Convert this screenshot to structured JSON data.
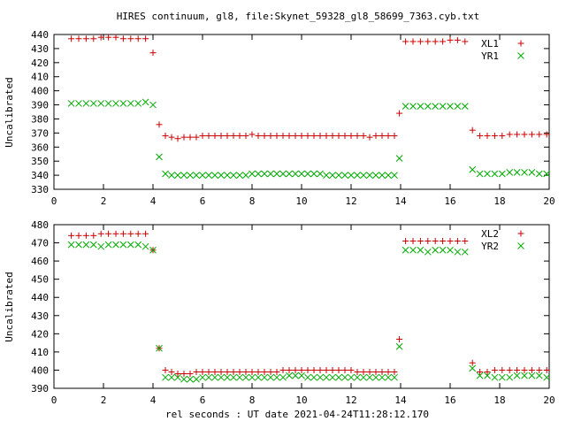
{
  "chart_data": [
    {
      "type": "scatter",
      "title": "HIRES continuum, gl8, file:Skynet_59328_gl8_58699_7363.cyb.txt",
      "xlabel": "",
      "ylabel": "Uncalibrated",
      "xlim": [
        0,
        20
      ],
      "ylim": [
        330,
        440
      ],
      "xticks": [
        "0",
        "2",
        "4",
        "6",
        "8",
        "10",
        "12",
        "14",
        "16",
        "18",
        "20"
      ],
      "yticks": [
        "330",
        "340",
        "350",
        "360",
        "370",
        "380",
        "390",
        "400",
        "410",
        "420",
        "430",
        "440"
      ],
      "legend_position": "top-right",
      "series": [
        {
          "name": "XL1",
          "marker": "plus",
          "color": "#cc0000",
          "x": [
            0.7,
            1.0,
            1.3,
            1.6,
            1.9,
            2.2,
            2.5,
            2.8,
            3.1,
            3.4,
            3.7,
            4.0,
            4.25,
            4.5,
            4.75,
            5.0,
            5.25,
            5.5,
            5.75,
            6.0,
            6.25,
            6.5,
            6.75,
            7.0,
            7.25,
            7.5,
            7.75,
            8.0,
            8.25,
            8.5,
            8.75,
            9.0,
            9.25,
            9.5,
            9.75,
            10.0,
            10.25,
            10.5,
            10.75,
            11.0,
            11.25,
            11.5,
            11.75,
            12.0,
            12.25,
            12.5,
            12.75,
            13.0,
            13.25,
            13.5,
            13.75,
            13.95,
            14.2,
            14.5,
            14.8,
            15.1,
            15.4,
            15.7,
            16.0,
            16.3,
            16.6,
            16.9,
            17.2,
            17.5,
            17.8,
            18.1,
            18.4,
            18.7,
            19.0,
            19.3,
            19.6,
            19.9
          ],
          "y": [
            437,
            437,
            437,
            437,
            438,
            438,
            438,
            437,
            437,
            437,
            437,
            427,
            376,
            368,
            367,
            366,
            367,
            367,
            367,
            368,
            368,
            368,
            368,
            368,
            368,
            368,
            368,
            369,
            368,
            368,
            368,
            368,
            368,
            368,
            368,
            368,
            368,
            368,
            368,
            368,
            368,
            368,
            368,
            368,
            368,
            368,
            367,
            368,
            368,
            368,
            368,
            384,
            435,
            435,
            435,
            435,
            435,
            435,
            436,
            436,
            435,
            372,
            368,
            368,
            368,
            368,
            369,
            369,
            369,
            369,
            369,
            369
          ]
        },
        {
          "name": "YR1",
          "marker": "x",
          "color": "#00aa00",
          "x": [
            0.7,
            1.0,
            1.3,
            1.6,
            1.9,
            2.2,
            2.5,
            2.8,
            3.1,
            3.4,
            3.7,
            4.0,
            4.25,
            4.5,
            4.75,
            5.0,
            5.25,
            5.5,
            5.75,
            6.0,
            6.25,
            6.5,
            6.75,
            7.0,
            7.25,
            7.5,
            7.75,
            8.0,
            8.25,
            8.5,
            8.75,
            9.0,
            9.25,
            9.5,
            9.75,
            10.0,
            10.25,
            10.5,
            10.75,
            11.0,
            11.25,
            11.5,
            11.75,
            12.0,
            12.25,
            12.5,
            12.75,
            13.0,
            13.25,
            13.5,
            13.75,
            13.95,
            14.2,
            14.5,
            14.8,
            15.1,
            15.4,
            15.7,
            16.0,
            16.3,
            16.6,
            16.9,
            17.2,
            17.5,
            17.8,
            18.1,
            18.4,
            18.7,
            19.0,
            19.3,
            19.6,
            19.9
          ],
          "y": [
            391,
            391,
            391,
            391,
            391,
            391,
            391,
            391,
            391,
            391,
            392,
            390,
            353,
            341,
            340,
            340,
            340,
            340,
            340,
            340,
            340,
            340,
            340,
            340,
            340,
            340,
            340,
            341,
            341,
            341,
            341,
            341,
            341,
            341,
            341,
            341,
            341,
            341,
            341,
            340,
            340,
            340,
            340,
            340,
            340,
            340,
            340,
            340,
            340,
            340,
            340,
            352,
            389,
            389,
            389,
            389,
            389,
            389,
            389,
            389,
            389,
            344,
            341,
            341,
            341,
            341,
            342,
            342,
            342,
            342,
            341,
            341
          ]
        }
      ]
    },
    {
      "type": "scatter",
      "title": "",
      "xlabel": "rel seconds : UT date 2021-04-24T11:28:12.170",
      "ylabel": "Uncalibrated",
      "xlim": [
        0,
        20
      ],
      "ylim": [
        390,
        480
      ],
      "xticks": [
        "0",
        "2",
        "4",
        "6",
        "8",
        "10",
        "12",
        "14",
        "16",
        "18",
        "20"
      ],
      "yticks": [
        "390",
        "400",
        "410",
        "420",
        "430",
        "440",
        "450",
        "460",
        "470",
        "480"
      ],
      "legend_position": "top-right",
      "series": [
        {
          "name": "XL2",
          "marker": "plus",
          "color": "#cc0000",
          "x": [
            0.7,
            1.0,
            1.3,
            1.6,
            1.9,
            2.2,
            2.5,
            2.8,
            3.1,
            3.4,
            3.7,
            4.0,
            4.25,
            4.5,
            4.75,
            5.0,
            5.25,
            5.5,
            5.75,
            6.0,
            6.25,
            6.5,
            6.75,
            7.0,
            7.25,
            7.5,
            7.75,
            8.0,
            8.25,
            8.5,
            8.75,
            9.0,
            9.25,
            9.5,
            9.75,
            10.0,
            10.25,
            10.5,
            10.75,
            11.0,
            11.25,
            11.5,
            11.75,
            12.0,
            12.25,
            12.5,
            12.75,
            13.0,
            13.25,
            13.5,
            13.75,
            13.95,
            14.2,
            14.5,
            14.8,
            15.1,
            15.4,
            15.7,
            16.0,
            16.3,
            16.6,
            16.9,
            17.2,
            17.5,
            17.8,
            18.1,
            18.4,
            18.7,
            19.0,
            19.3,
            19.6,
            19.9
          ],
          "y": [
            474,
            474,
            474,
            474,
            475,
            475,
            475,
            475,
            475,
            475,
            475,
            466,
            412,
            400,
            399,
            398,
            398,
            398,
            399,
            399,
            399,
            399,
            399,
            399,
            399,
            399,
            399,
            399,
            399,
            399,
            399,
            399,
            400,
            400,
            400,
            400,
            400,
            400,
            400,
            400,
            400,
            400,
            400,
            400,
            399,
            399,
            399,
            399,
            399,
            399,
            399,
            417,
            471,
            471,
            471,
            471,
            471,
            471,
            471,
            471,
            471,
            404,
            399,
            399,
            400,
            400,
            400,
            400,
            400,
            400,
            400,
            400
          ]
        },
        {
          "name": "YR2",
          "marker": "x",
          "color": "#00aa00",
          "x": [
            0.7,
            1.0,
            1.3,
            1.6,
            1.9,
            2.2,
            2.5,
            2.8,
            3.1,
            3.4,
            3.7,
            4.0,
            4.25,
            4.5,
            4.75,
            5.0,
            5.25,
            5.5,
            5.75,
            6.0,
            6.25,
            6.5,
            6.75,
            7.0,
            7.25,
            7.5,
            7.75,
            8.0,
            8.25,
            8.5,
            8.75,
            9.0,
            9.25,
            9.5,
            9.75,
            10.0,
            10.25,
            10.5,
            10.75,
            11.0,
            11.25,
            11.5,
            11.75,
            12.0,
            12.25,
            12.5,
            12.75,
            13.0,
            13.25,
            13.5,
            13.75,
            13.95,
            14.2,
            14.5,
            14.8,
            15.1,
            15.4,
            15.7,
            16.0,
            16.3,
            16.6,
            16.9,
            17.2,
            17.5,
            17.8,
            18.1,
            18.4,
            18.7,
            19.0,
            19.3,
            19.6,
            19.9
          ],
          "y": [
            469,
            469,
            469,
            469,
            468,
            469,
            469,
            469,
            469,
            469,
            468,
            466,
            412,
            396,
            396,
            396,
            395,
            395,
            395,
            396,
            396,
            396,
            396,
            396,
            396,
            396,
            396,
            396,
            396,
            396,
            396,
            396,
            396,
            397,
            397,
            397,
            396,
            396,
            396,
            396,
            396,
            396,
            396,
            396,
            396,
            396,
            396,
            396,
            396,
            396,
            396,
            413,
            466,
            466,
            466,
            465,
            466,
            466,
            466,
            465,
            465,
            401,
            397,
            397,
            396,
            396,
            396,
            397,
            397,
            397,
            397,
            396
          ]
        }
      ]
    }
  ]
}
